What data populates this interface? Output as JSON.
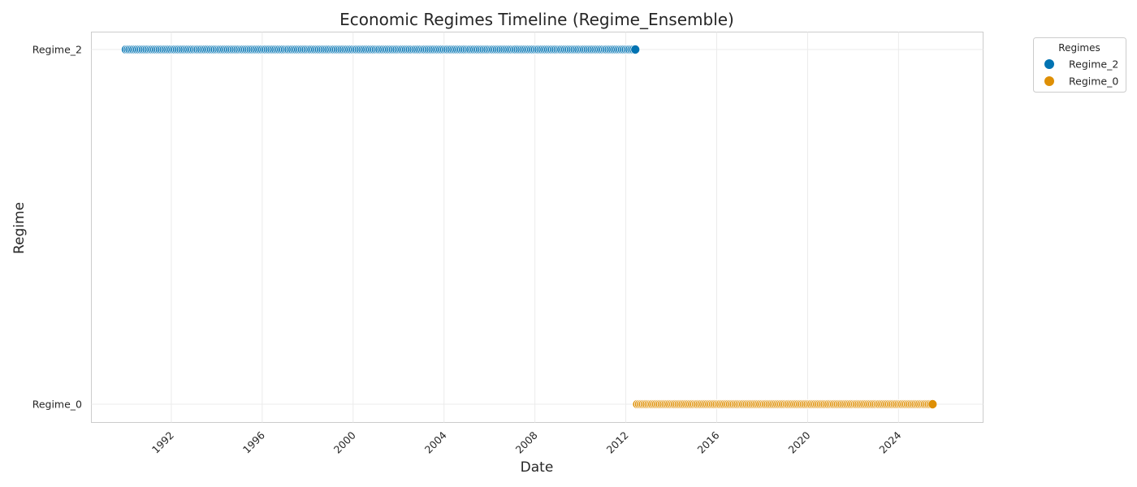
{
  "chart_data": {
    "type": "scatter",
    "title": "Economic Regimes Timeline (Regime_Ensemble)",
    "xlabel": "Date",
    "ylabel": "Regime",
    "x_type": "date",
    "xlim": [
      "1990-01-01",
      "2025-12-01"
    ],
    "x_ticks": [
      "1992",
      "1996",
      "2000",
      "2004",
      "2008",
      "2012",
      "2016",
      "2020",
      "2024"
    ],
    "y_categories": [
      "Regime_0",
      "Regime_2"
    ],
    "grid": true,
    "legend": {
      "title": "Regimes",
      "position": "outside top-right"
    },
    "series": [
      {
        "name": "Regime_2",
        "color": "#0173b2",
        "y": "Regime_2",
        "x_start": "1990-01",
        "x_end": "2012-06",
        "frequency": "monthly"
      },
      {
        "name": "Regime_0",
        "color": "#de8f05",
        "y": "Regime_0",
        "x_start": "2012-07",
        "x_end": "2025-07",
        "frequency": "monthly"
      }
    ]
  }
}
